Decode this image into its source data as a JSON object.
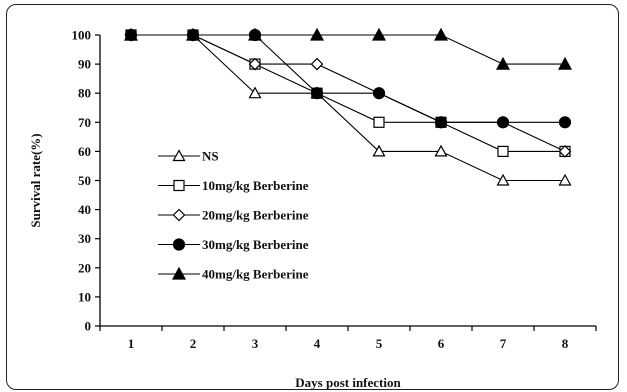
{
  "chart_data": {
    "type": "line",
    "title": "",
    "xlabel": "Days post infection",
    "ylabel": "Survival rate(%)",
    "x": [
      1,
      2,
      3,
      4,
      5,
      6,
      7,
      8
    ],
    "xlim": [
      0.5,
      8.5
    ],
    "ylim": [
      0,
      100
    ],
    "yticks": [
      0,
      10,
      20,
      30,
      40,
      50,
      60,
      70,
      80,
      90,
      100
    ],
    "grid": false,
    "legend_position": "center-left",
    "series": [
      {
        "name": "NS",
        "marker": "triangle-open",
        "values": [
          100,
          100,
          80,
          80,
          60,
          60,
          50,
          50
        ]
      },
      {
        "name": "10mg/kg Berberine",
        "marker": "square-open",
        "values": [
          100,
          100,
          90,
          80,
          70,
          70,
          60,
          60
        ]
      },
      {
        "name": "20mg/kg Berberine",
        "marker": "diamond-open",
        "values": [
          100,
          100,
          90,
          90,
          80,
          70,
          70,
          60
        ]
      },
      {
        "name": "30mg/kg Berberine",
        "marker": "circle-filled",
        "values": [
          100,
          100,
          100,
          80,
          80,
          70,
          70,
          70
        ]
      },
      {
        "name": "40mg/kg Berberine",
        "marker": "triangle-filled",
        "values": [
          100,
          100,
          100,
          100,
          100,
          100,
          90,
          90
        ]
      }
    ]
  }
}
